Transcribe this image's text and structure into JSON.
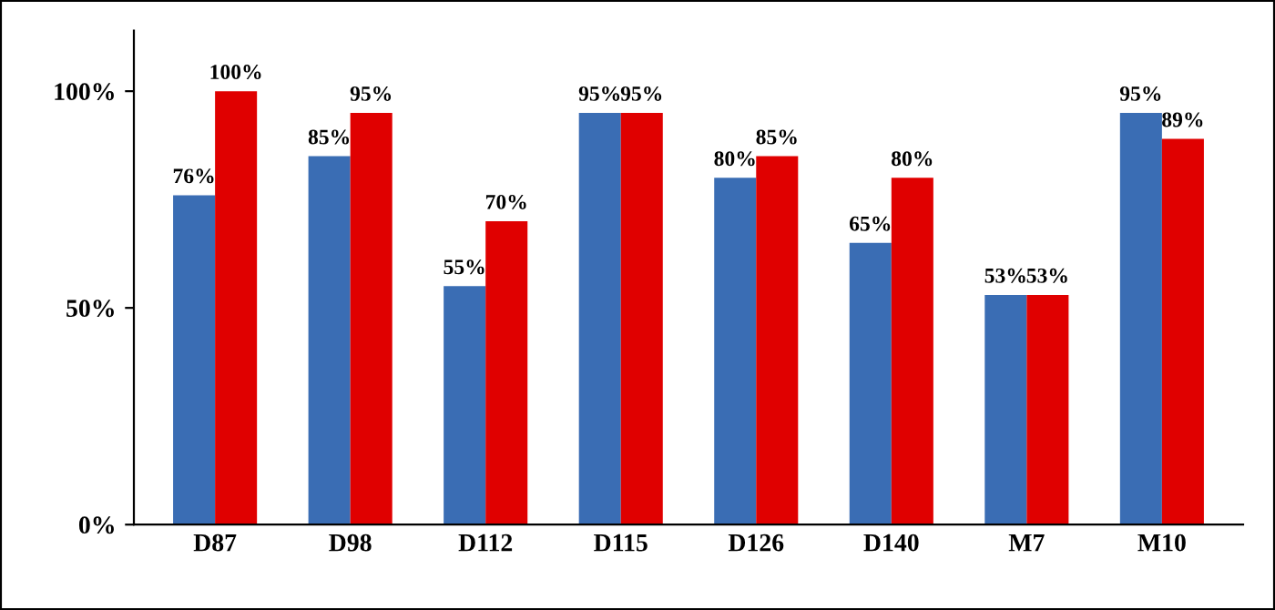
{
  "chart_data": {
    "type": "bar",
    "categories": [
      "D87",
      "D98",
      "D112",
      "D115",
      "D126",
      "D140",
      "M7",
      "M10"
    ],
    "series": [
      {
        "color": "#3a6db4",
        "values": [
          76,
          85,
          55,
          95,
          80,
          65,
          53,
          95
        ],
        "value_labels": [
          "76%",
          "85%",
          "55%",
          "95%",
          "80%",
          "65%",
          "53%",
          "95%"
        ]
      },
      {
        "color": "#e00000",
        "values": [
          100,
          95,
          70,
          95,
          85,
          80,
          53,
          89
        ],
        "value_labels": [
          "100%",
          "95%",
          "70%",
          "95%",
          "85%",
          "80%",
          "53%",
          "89%"
        ]
      }
    ],
    "ylim": [
      0,
      114
    ],
    "yticks": [
      {
        "value": 0,
        "label": "0%"
      },
      {
        "value": 50,
        "label": "50%"
      },
      {
        "value": 100,
        "label": "100%"
      }
    ],
    "grid": false,
    "legend": false
  }
}
